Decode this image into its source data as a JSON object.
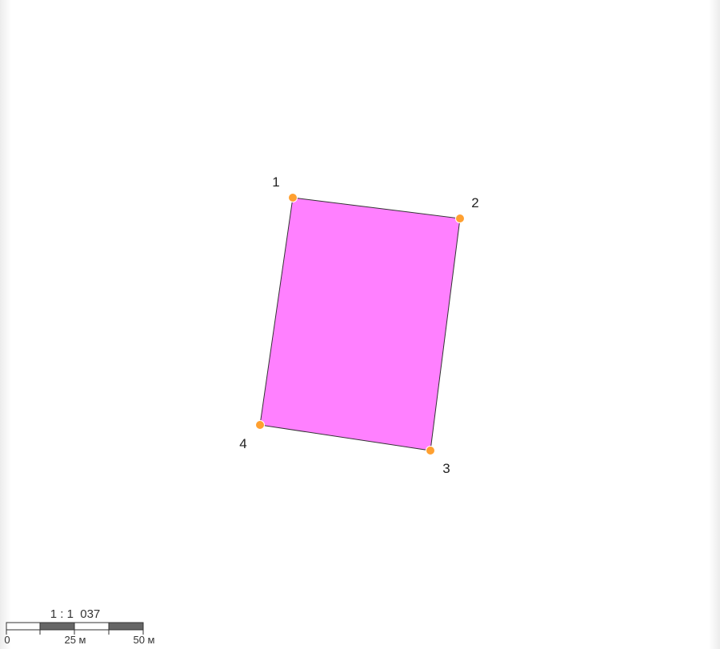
{
  "map": {
    "parcel": {
      "fill_color": "#ff80ff",
      "stroke_color": "#333333",
      "vertices": [
        {
          "label": "1"
        },
        {
          "label": "2"
        },
        {
          "label": "3"
        },
        {
          "label": "4"
        }
      ]
    },
    "vertex_marker_color": "#ffa030",
    "scale_bar": {
      "ratio_text": "1 : 1  037",
      "tick_labels": [
        "0",
        "25 м",
        "50 м"
      ],
      "dark_color": "#666666",
      "light_color": "#ffffff"
    }
  }
}
